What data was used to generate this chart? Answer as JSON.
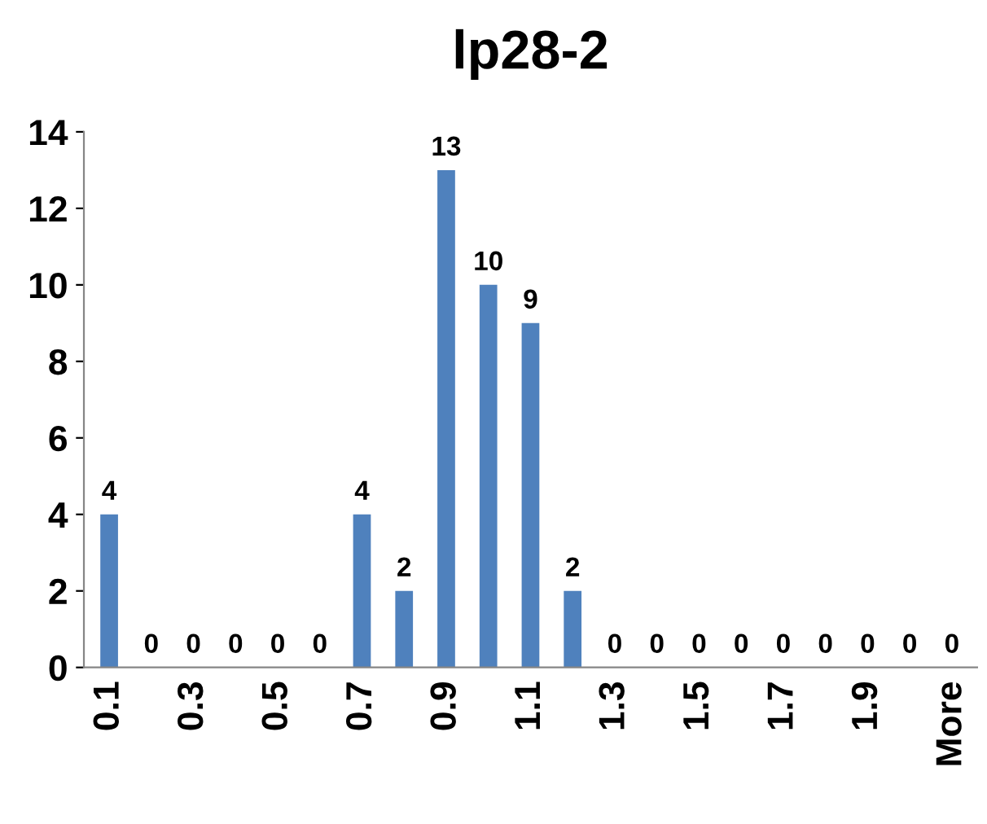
{
  "chart_data": {
    "type": "bar",
    "title": "lp28-2",
    "categories": [
      "0.1",
      null,
      "0.3",
      null,
      "0.5",
      null,
      "0.7",
      null,
      "0.9",
      null,
      "1.1",
      null,
      "1.3",
      null,
      "1.5",
      null,
      "1.7",
      null,
      "1.9",
      null,
      "More"
    ],
    "values": [
      4,
      0,
      0,
      0,
      0,
      0,
      4,
      2,
      13,
      10,
      9,
      2,
      0,
      0,
      0,
      0,
      0,
      0,
      0,
      0,
      0
    ],
    "color": "#4f81bd",
    "ylim": [
      0,
      14
    ],
    "yticks": [
      0,
      2,
      4,
      6,
      8,
      10,
      12,
      14
    ],
    "grid": false,
    "legend": false,
    "data_labels": true
  }
}
